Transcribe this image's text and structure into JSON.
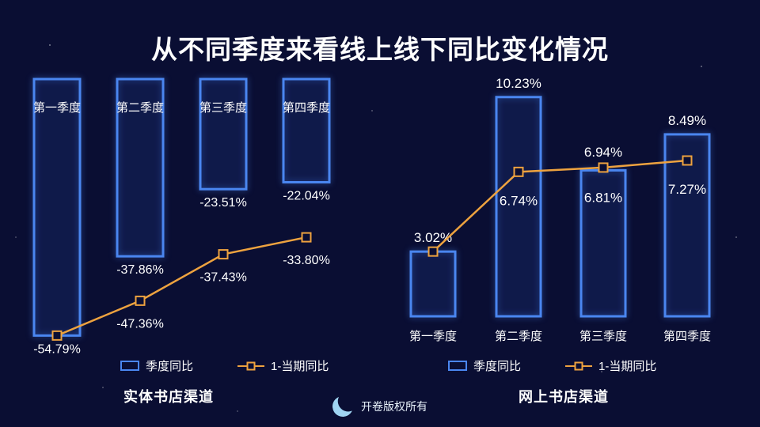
{
  "page": {
    "title": "从不同季度来看线上线下同比变化情况",
    "footer_text": "开卷版权所有"
  },
  "colors": {
    "background": "#0a0e33",
    "bar_outline": "#4a86f0",
    "line_series": "#eda23f",
    "text_primary": "#ffffff"
  },
  "chart_data": [
    {
      "type": "bar",
      "combo": "bar+line",
      "caption": "实体书店渠道",
      "categories": [
        "第一季度",
        "第二季度",
        "第三季度",
        "第四季度"
      ],
      "series": [
        {
          "name": "季度同比",
          "type": "bar",
          "values": [
            -54.79,
            -37.86,
            -23.51,
            -22.04
          ],
          "labels": [
            "-54.79%",
            "-37.86%",
            "-23.51%",
            "-22.04%"
          ]
        },
        {
          "name": "1-当期同比",
          "type": "line",
          "values": [
            -54.79,
            -47.36,
            -37.43,
            -33.8
          ],
          "labels": [
            "",
            "-47.36%",
            "-37.43%",
            "-33.80%"
          ]
        }
      ],
      "ylim": [
        -60,
        0
      ],
      "value_axis_visible": false,
      "gridlines": false,
      "legend_position": "bottom",
      "category_labels_position": "top",
      "bar_style": "hollow-outline"
    },
    {
      "type": "bar",
      "combo": "bar+line",
      "caption": "网上书店渠道",
      "categories": [
        "第一季度",
        "第二季度",
        "第三季度",
        "第四季度"
      ],
      "series": [
        {
          "name": "季度同比",
          "type": "bar",
          "values": [
            3.02,
            10.23,
            6.81,
            8.49
          ],
          "labels": [
            "3.02%",
            "10.23%",
            "6.81%",
            "8.49%"
          ]
        },
        {
          "name": "1-当期同比",
          "type": "line",
          "values": [
            3.02,
            6.74,
            6.94,
            7.27
          ],
          "labels": [
            "",
            "6.74%",
            "6.94%",
            "7.27%"
          ]
        }
      ],
      "ylim": [
        0,
        11
      ],
      "value_axis_visible": false,
      "gridlines": false,
      "legend_position": "bottom",
      "category_labels_position": "bottom",
      "bar_style": "hollow-outline"
    }
  ]
}
